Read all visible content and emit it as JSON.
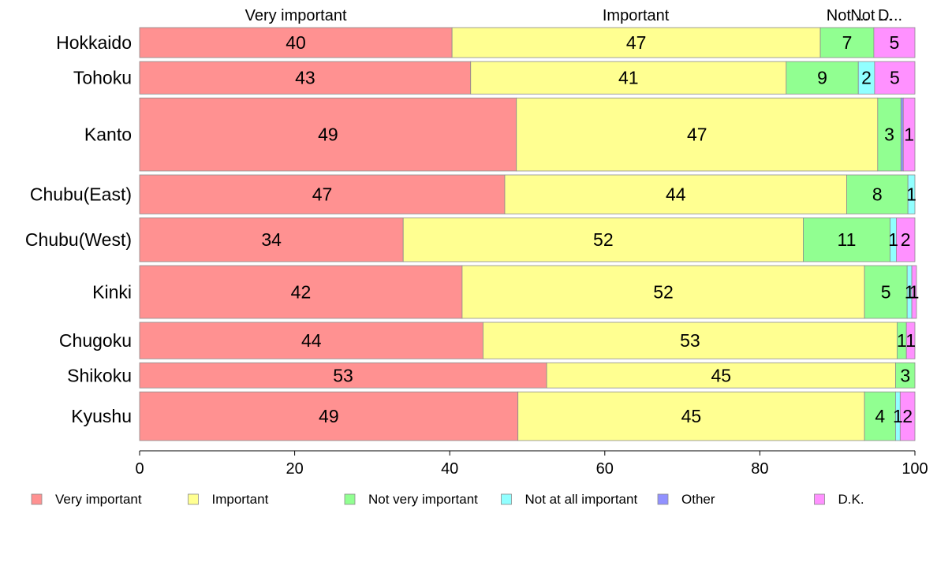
{
  "chart_data": {
    "type": "bar",
    "orientation": "horizontal",
    "stacked": true,
    "categories": [
      "Hokkaido",
      "Tohoku",
      "Kanto",
      "Chubu(East)",
      "Chubu(West)",
      "Kinki",
      "Chugoku",
      "Shikoku",
      "Kyushu"
    ],
    "series": [
      {
        "name": "Very important",
        "color": "#ff9191",
        "values": [
          40.3,
          42.7,
          48.6,
          47.1,
          34.0,
          41.6,
          44.3,
          52.5,
          48.8
        ]
      },
      {
        "name": "Important",
        "color": "#ffff91",
        "values": [
          47.5,
          40.7,
          46.6,
          44.1,
          51.6,
          51.9,
          53.4,
          45.0,
          44.7
        ]
      },
      {
        "name": "Not very important",
        "color": "#91ff91",
        "values": [
          6.9,
          9.3,
          3.0,
          7.9,
          11.2,
          5.5,
          1.2,
          2.5,
          4.0
        ]
      },
      {
        "name": "Not at all important",
        "color": "#91ffff",
        "values": [
          0,
          2.1,
          0,
          0.9,
          0.8,
          0.6,
          0,
          0,
          0.6
        ]
      },
      {
        "name": "Other",
        "color": "#9191ff",
        "values": [
          0,
          0,
          0.3,
          0,
          0,
          0,
          0,
          0,
          0
        ]
      },
      {
        "name": "D.K.",
        "color": "#ff91ff",
        "values": [
          5.3,
          5.2,
          1.5,
          0,
          2.4,
          0.6,
          1.1,
          0,
          1.9
        ]
      }
    ],
    "value_labels": [
      [
        "40",
        "47",
        "7",
        "",
        "",
        "5"
      ],
      [
        "43",
        "41",
        "9",
        "2",
        "",
        "5"
      ],
      [
        "49",
        "47",
        "3",
        "",
        "",
        "1"
      ],
      [
        "47",
        "44",
        "8",
        "1",
        "",
        ""
      ],
      [
        "34",
        "52",
        "11",
        "1",
        "",
        "2"
      ],
      [
        "42",
        "52",
        "5",
        "1",
        "",
        "1"
      ],
      [
        "44",
        "53",
        "1",
        "",
        "",
        "1"
      ],
      [
        "53",
        "45",
        "3",
        "",
        "",
        ""
      ],
      [
        "49",
        "45",
        "4",
        "1",
        "",
        "2"
      ]
    ],
    "bar_weights": [
      37,
      40,
      90,
      48,
      54,
      65,
      45,
      31,
      60
    ],
    "top_labels": [
      {
        "text": "Very important",
        "at": 20.15
      },
      {
        "text": "Important",
        "at": 64.0
      },
      {
        "text": "Not ...",
        "at": 91.3
      },
      {
        "text": "Not ...",
        "at": 94.4
      },
      {
        "text": "D...",
        "at": 96.8
      }
    ],
    "xlim": [
      0,
      100
    ],
    "xticks": [
      0,
      20,
      40,
      60,
      80,
      100
    ],
    "title": "",
    "xlabel": "",
    "ylabel": "",
    "grid": false,
    "legend_position": "bottom"
  }
}
